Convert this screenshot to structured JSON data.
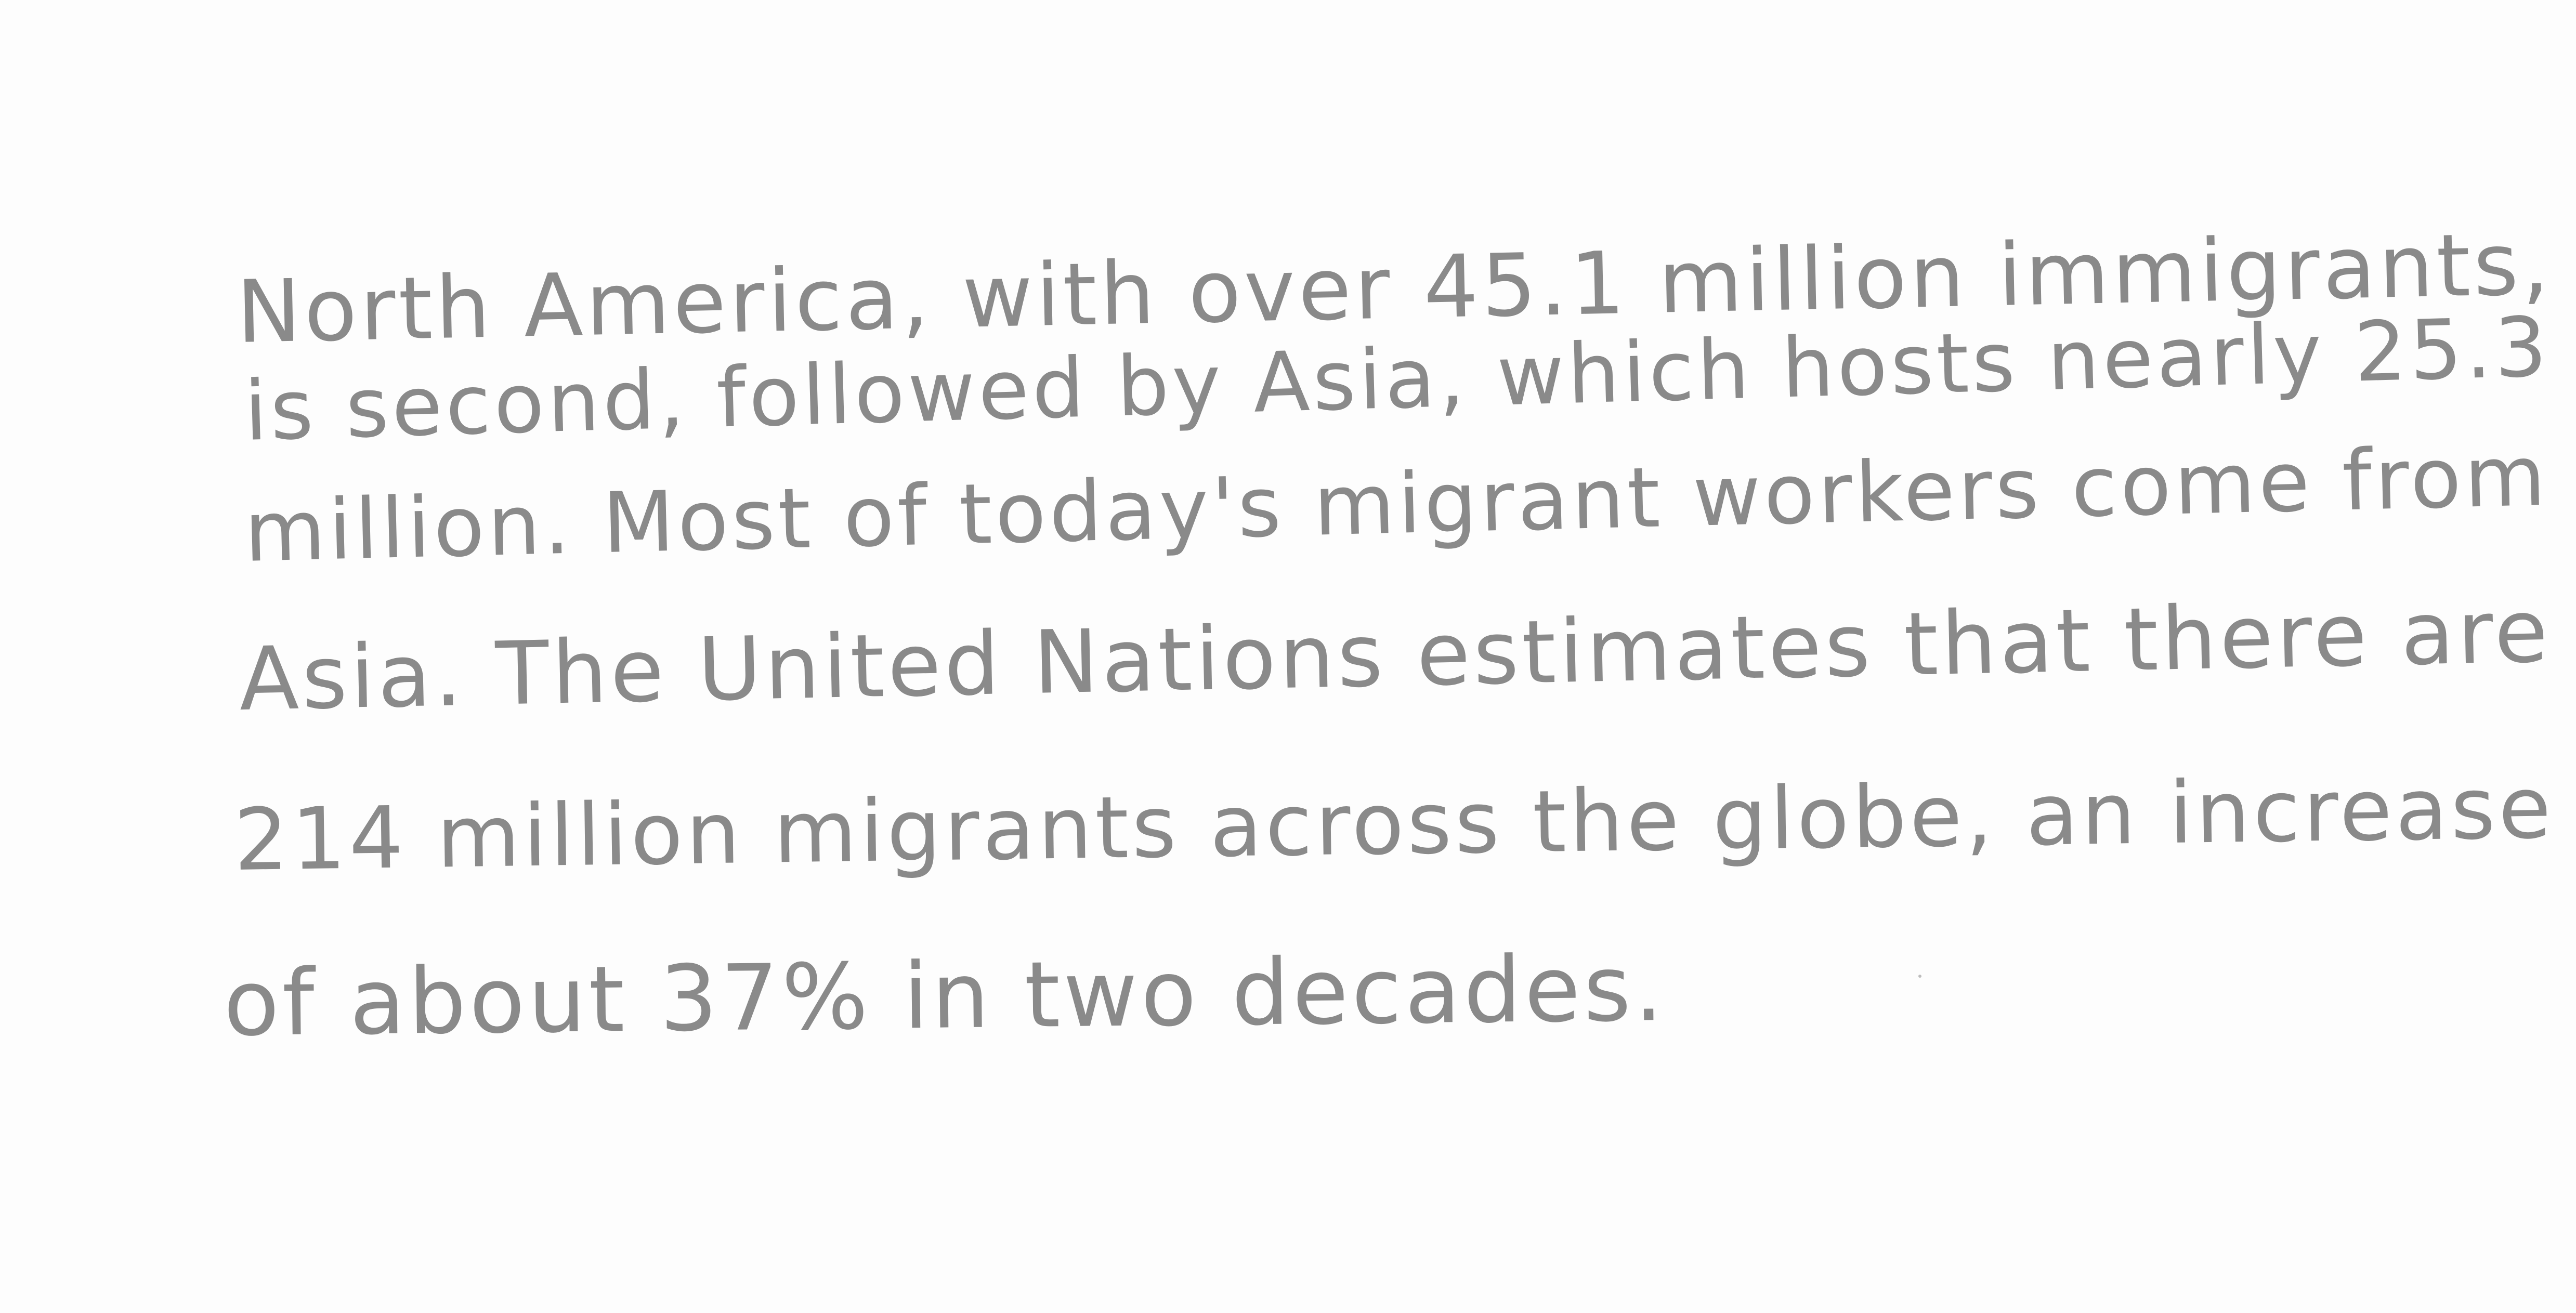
{
  "document": {
    "lines": [
      "North America, with over 45.1 million immigrants,",
      "is second, followed by Asia, which hosts nearly 25.3",
      "million. Most of today's migrant workers come from",
      "Asia. The United Nations estimates that there are",
      "214 million migrants across the globe, an increase",
      "of about 37% in two decades."
    ]
  },
  "colors": {
    "ink": "#8a8a8a",
    "paper": "#fdfdfd"
  }
}
